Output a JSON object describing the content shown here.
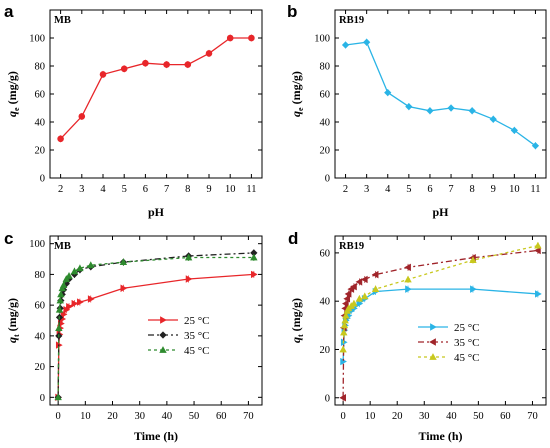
{
  "chart_data": [
    {
      "panel": "a",
      "type": "line",
      "panel_label": "MB",
      "xlabel": "pH",
      "ylabel_main": "q",
      "ylabel_sub": "e",
      "ylabel_unit": " (mg/g)",
      "xlim": [
        1.5,
        11.5
      ],
      "ylim": [
        0,
        120
      ],
      "xticks": [
        2,
        3,
        4,
        5,
        6,
        7,
        8,
        9,
        10,
        11
      ],
      "yticks": [
        0,
        20,
        40,
        60,
        80,
        100
      ],
      "grid": false,
      "series": [
        {
          "color": "#e8262a",
          "marker": "circle",
          "dash": "",
          "x": [
            2,
            3,
            4,
            5,
            6,
            7,
            8,
            9,
            10,
            11
          ],
          "values": [
            28,
            44,
            74,
            78,
            82,
            81,
            81,
            89,
            100,
            100
          ]
        }
      ]
    },
    {
      "panel": "b",
      "type": "line",
      "panel_label": "RB19",
      "xlabel": "pH",
      "ylabel_main": "q",
      "ylabel_sub": "e",
      "ylabel_unit": " (mg/g)",
      "xlim": [
        1.5,
        11.5
      ],
      "ylim": [
        0,
        120
      ],
      "xticks": [
        2,
        3,
        4,
        5,
        6,
        7,
        8,
        9,
        10,
        11
      ],
      "yticks": [
        0,
        20,
        40,
        60,
        80,
        100
      ],
      "grid": false,
      "series": [
        {
          "color": "#2ab4e6",
          "marker": "diamond",
          "dash": "",
          "x": [
            2,
            3,
            4,
            5,
            6,
            7,
            8,
            9,
            10,
            11
          ],
          "values": [
            95,
            97,
            61,
            51,
            48,
            50,
            48,
            42,
            34,
            23
          ]
        }
      ]
    },
    {
      "panel": "c",
      "type": "line",
      "panel_label": "MB",
      "xlabel": "Time (h)",
      "ylabel_main": "q",
      "ylabel_sub": "t",
      "ylabel_unit": " (mg/g)",
      "xlim": [
        -3,
        75
      ],
      "ylim": [
        -5,
        105
      ],
      "xticks": [
        0,
        10,
        20,
        30,
        40,
        50,
        60,
        70
      ],
      "yticks": [
        0,
        20,
        40,
        60,
        80,
        100
      ],
      "grid": false,
      "legend_position": "center-right",
      "series": [
        {
          "name": "25 °C",
          "color": "#e8262a",
          "marker": "triangle-right",
          "dash": "",
          "x": [
            0,
            0.25,
            0.5,
            0.75,
            1,
            1.5,
            2,
            3,
            4,
            6,
            8,
            12,
            24,
            48,
            72
          ],
          "values": [
            0,
            34,
            41,
            45,
            48,
            51,
            54,
            57,
            59,
            61,
            62,
            64,
            71,
            77,
            80
          ]
        },
        {
          "name": "35 °C",
          "color": "#222222",
          "marker": "diamond",
          "dash": "6,3,2,3",
          "x": [
            0,
            0.25,
            0.5,
            0.75,
            1,
            1.5,
            2,
            3,
            4,
            6,
            8,
            12,
            24,
            48,
            72
          ],
          "values": [
            0,
            40,
            52,
            58,
            63,
            67,
            70,
            74,
            77,
            80,
            83,
            85,
            88,
            92,
            94
          ]
        },
        {
          "name": "45 °C",
          "color": "#2e8b2e",
          "marker": "triangle-up",
          "dash": "3,3",
          "x": [
            0,
            0.25,
            0.5,
            0.75,
            1,
            1.5,
            2,
            3,
            4,
            6,
            8,
            12,
            24,
            48,
            72
          ],
          "values": [
            0,
            45,
            57,
            63,
            67,
            71,
            73,
            77,
            79,
            82,
            84,
            86,
            88,
            91,
            91
          ]
        }
      ]
    },
    {
      "panel": "d",
      "type": "line",
      "panel_label": "RB19",
      "xlabel": "Time (h)",
      "ylabel_main": "q",
      "ylabel_sub": "t",
      "ylabel_unit": " (mg/g)",
      "xlim": [
        -3,
        75
      ],
      "ylim": [
        -3,
        67
      ],
      "xticks": [
        0,
        10,
        20,
        30,
        40,
        50,
        60,
        70
      ],
      "yticks": [
        0,
        20,
        40,
        60
      ],
      "grid": false,
      "legend_position": "center-right",
      "series": [
        {
          "name": "25 °C",
          "color": "#2ab4e6",
          "marker": "triangle-right",
          "dash": "",
          "x": [
            0,
            0.25,
            0.5,
            0.75,
            1,
            1.5,
            2,
            3,
            4,
            6,
            8,
            12,
            24,
            48,
            72
          ],
          "values": [
            15,
            23,
            28,
            30,
            32,
            33,
            34,
            36,
            37,
            39,
            41,
            44,
            45,
            45,
            43
          ]
        },
        {
          "name": "35 °C",
          "color": "#a0242a",
          "marker": "triangle-left",
          "dash": "6,3,2,3",
          "x": [
            0,
            0.25,
            0.5,
            0.75,
            1,
            1.5,
            2,
            3,
            4,
            6,
            8,
            12,
            24,
            48,
            72
          ],
          "values": [
            0,
            29,
            34,
            37,
            39,
            41,
            43,
            45,
            46,
            48,
            49,
            51,
            54,
            58,
            61
          ]
        },
        {
          "name": "45 °C",
          "color": "#c8c81e",
          "marker": "triangle-up",
          "dash": "3,3",
          "x": [
            0,
            0.25,
            0.5,
            0.75,
            1,
            1.5,
            2,
            3,
            4,
            6,
            8,
            12,
            24,
            48,
            72
          ],
          "values": [
            20,
            27,
            30,
            32,
            34,
            36,
            37,
            38,
            39,
            41,
            42,
            45,
            49,
            57,
            63
          ]
        }
      ]
    }
  ]
}
